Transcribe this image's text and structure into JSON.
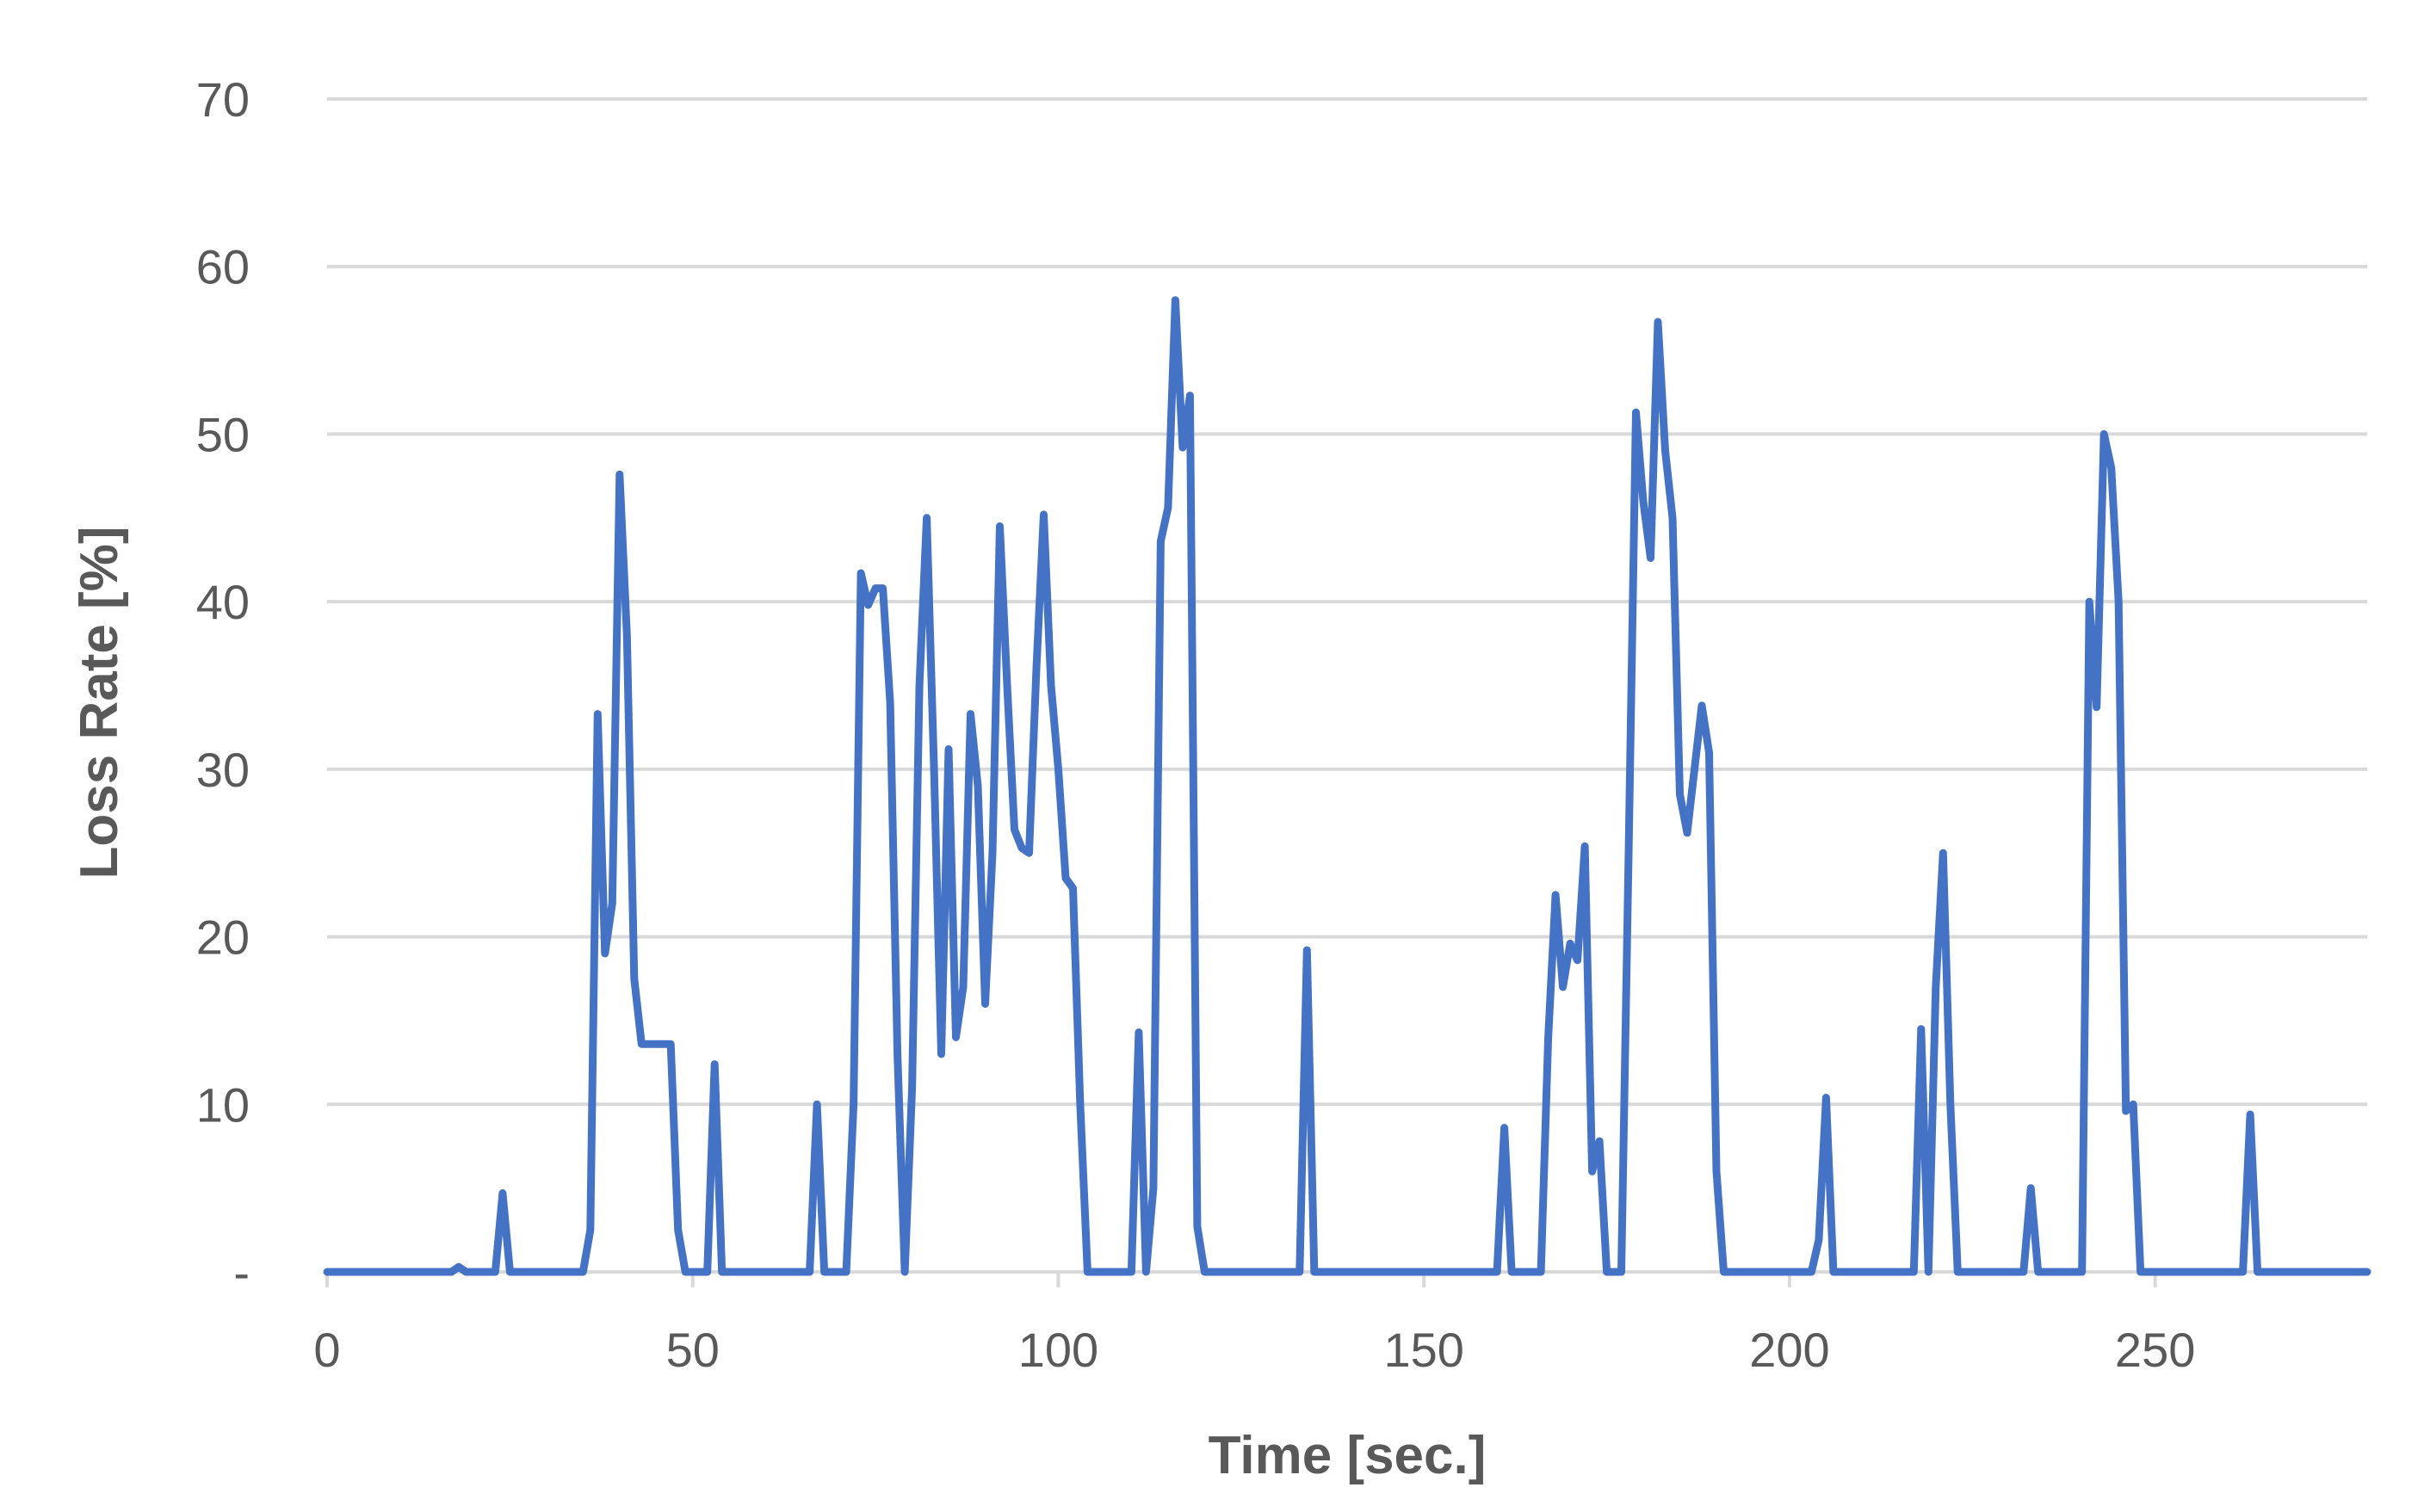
{
  "chart_data": {
    "type": "line",
    "title": "",
    "xlabel": "Time [sec.]",
    "ylabel": "Loss Rate [%]",
    "xlim": [
      0,
      279
    ],
    "ylim": [
      0,
      70
    ],
    "x_ticks": [
      0,
      50,
      100,
      150,
      200,
      250
    ],
    "y_ticks": [
      {
        "value": 0,
        "label": "-"
      },
      {
        "value": 10,
        "label": "10"
      },
      {
        "value": 20,
        "label": "20"
      },
      {
        "value": 30,
        "label": "30"
      },
      {
        "value": 40,
        "label": "40"
      },
      {
        "value": 50,
        "label": "50"
      },
      {
        "value": 60,
        "label": "60"
      },
      {
        "value": 70,
        "label": "70"
      }
    ],
    "grid": true,
    "legend": "none",
    "colors": {
      "series": "#4472c4",
      "grid": "#d9d9d9",
      "text": "#595959"
    },
    "series": [
      {
        "values": [
          [
            0,
            0
          ],
          [
            17,
            0
          ],
          [
            18,
            0.3
          ],
          [
            19,
            0
          ],
          [
            23,
            0
          ],
          [
            24,
            4.7
          ],
          [
            25,
            0
          ],
          [
            35,
            0
          ],
          [
            36,
            2.5
          ],
          [
            37,
            33.3
          ],
          [
            38,
            19
          ],
          [
            39,
            22
          ],
          [
            40,
            47.6
          ],
          [
            41,
            38
          ],
          [
            42,
            17.5
          ],
          [
            43,
            13.6
          ],
          [
            44,
            13.6
          ],
          [
            45,
            13.6
          ],
          [
            46,
            13.6
          ],
          [
            47,
            13.6
          ],
          [
            48,
            2.5
          ],
          [
            49,
            0
          ],
          [
            52,
            0
          ],
          [
            53,
            12.4
          ],
          [
            54,
            0
          ],
          [
            66,
            0
          ],
          [
            67,
            10
          ],
          [
            68,
            0
          ],
          [
            71,
            0
          ],
          [
            72,
            10
          ],
          [
            73,
            41.7
          ],
          [
            74,
            39.8
          ],
          [
            75,
            40.8
          ],
          [
            76,
            40.8
          ],
          [
            77,
            34
          ],
          [
            78,
            13
          ],
          [
            79,
            0
          ],
          [
            80,
            11
          ],
          [
            81,
            35
          ],
          [
            82,
            45
          ],
          [
            83,
            30
          ],
          [
            84,
            13
          ],
          [
            85,
            31.2
          ],
          [
            86,
            14
          ],
          [
            87,
            17
          ],
          [
            88,
            33.3
          ],
          [
            89,
            29
          ],
          [
            90,
            16
          ],
          [
            91,
            25
          ],
          [
            92,
            44.5
          ],
          [
            93,
            35
          ],
          [
            94,
            26.4
          ],
          [
            95,
            25.3
          ],
          [
            96,
            25
          ],
          [
            97,
            36
          ],
          [
            98,
            45.2
          ],
          [
            99,
            35
          ],
          [
            100,
            30
          ],
          [
            101,
            23.5
          ],
          [
            102,
            22.9
          ],
          [
            103,
            10
          ],
          [
            104,
            0
          ],
          [
            110,
            0
          ],
          [
            111,
            14.3
          ],
          [
            112,
            0
          ],
          [
            113,
            5
          ],
          [
            114,
            43.6
          ],
          [
            115,
            45.6
          ],
          [
            116,
            58
          ],
          [
            117,
            49.2
          ],
          [
            118,
            52.3
          ],
          [
            119,
            2.7
          ],
          [
            120,
            0
          ],
          [
            133,
            0
          ],
          [
            134,
            19.2
          ],
          [
            135,
            0
          ],
          [
            160,
            0
          ],
          [
            161,
            8.6
          ],
          [
            162,
            0
          ],
          [
            166,
            0
          ],
          [
            167,
            14
          ],
          [
            168,
            22.5
          ],
          [
            169,
            17
          ],
          [
            170,
            19.6
          ],
          [
            171,
            18.6
          ],
          [
            172,
            25.4
          ],
          [
            173,
            6
          ],
          [
            174,
            7.8
          ],
          [
            175,
            0
          ],
          [
            177,
            0
          ],
          [
            178,
            25
          ],
          [
            179,
            51.3
          ],
          [
            180,
            46
          ],
          [
            181,
            42.6
          ],
          [
            182,
            56.7
          ],
          [
            183,
            49
          ],
          [
            184,
            45
          ],
          [
            185,
            28.5
          ],
          [
            186,
            26.2
          ],
          [
            187,
            30
          ],
          [
            188,
            33.8
          ],
          [
            189,
            31
          ],
          [
            190,
            6
          ],
          [
            191,
            0
          ],
          [
            203,
            0
          ],
          [
            204,
            1.9
          ],
          [
            205,
            10.4
          ],
          [
            206,
            0
          ],
          [
            217,
            0
          ],
          [
            218,
            14.5
          ],
          [
            219,
            0
          ],
          [
            220,
            17
          ],
          [
            221,
            25
          ],
          [
            222,
            10
          ],
          [
            223,
            0
          ],
          [
            232,
            0
          ],
          [
            233,
            5
          ],
          [
            234,
            0
          ],
          [
            240,
            0
          ],
          [
            241,
            40
          ],
          [
            242,
            33.7
          ],
          [
            243,
            50
          ],
          [
            244,
            48
          ],
          [
            245,
            40
          ],
          [
            246,
            9.6
          ],
          [
            247,
            10
          ],
          [
            248,
            0
          ],
          [
            262,
            0
          ],
          [
            263,
            9.4
          ],
          [
            264,
            0
          ],
          [
            279,
            0
          ]
        ]
      }
    ]
  }
}
